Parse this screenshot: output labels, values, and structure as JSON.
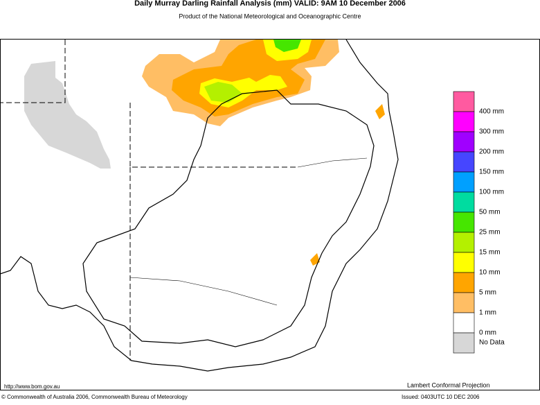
{
  "header": {
    "title": "Daily Murray Darling Rainfall Analysis (mm)  VALID: 9AM 10 December 2006",
    "subtitle": "Product of the National Meteorological and Oceanographic Centre"
  },
  "legend": {
    "colors": [
      "#ff5aa0",
      "#ff00ff",
      "#a000ff",
      "#4646ff",
      "#00a0ff",
      "#00dca0",
      "#46e600",
      "#b4f000",
      "#ffff00",
      "#ffa500",
      "#ffbe64",
      "#ffffff",
      "#d7d7d7"
    ],
    "labels": [
      "400 mm",
      "300 mm",
      "200 mm",
      "150 mm",
      "100 mm",
      "50 mm",
      "25 mm",
      "15 mm",
      "10 mm",
      "5 mm",
      "1 mm",
      "0 mm",
      "No Data"
    ]
  },
  "footer": {
    "url": "http://www.bom.gov.au",
    "projection": "Lambert Conformal Projection",
    "copyright": "© Commonwealth of Australia 2006, Commonwealth Bureau of Meteorology",
    "issued": "Issued: 0403UTC 10 DEC 2006"
  }
}
